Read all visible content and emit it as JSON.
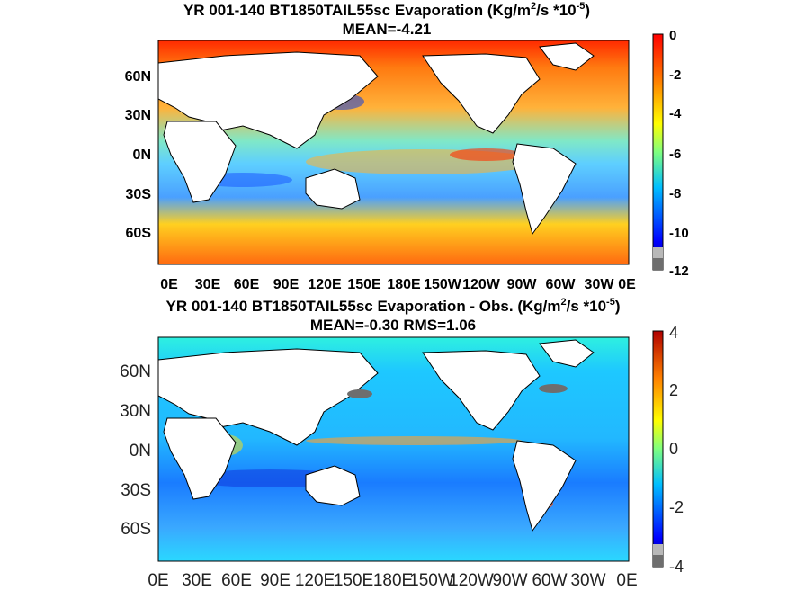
{
  "chart_data": [
    {
      "type": "heatmap",
      "title_main": "YR 001-140 BT1850TAIL55sc  Evaporation (Kg/m",
      "title_sup1": "2",
      "title_mid": "/s *10",
      "title_sup2": "-5",
      "title_end": ")",
      "subtitle": "MEAN=-4.21",
      "mean": -4.21,
      "x_ticks": [
        "0E",
        "30E",
        "60E",
        "90E",
        "120E",
        "150E",
        "180E",
        "150W",
        "120W",
        "90W",
        "60W",
        "30W",
        "0E"
      ],
      "y_ticks": [
        "60N",
        "30N",
        "0N",
        "30S",
        "60S"
      ],
      "colorbar": {
        "ticks": [
          "0",
          "-2",
          "-4",
          "-6",
          "-8",
          "-10",
          "-12"
        ],
        "range": [
          -12,
          0
        ]
      }
    },
    {
      "type": "heatmap",
      "title_main": "YR 001-140 BT1850TAIL55sc Evaporation - Obs. (Kg/m",
      "title_sup1": "2",
      "title_mid": "/s *10",
      "title_sup2": "-5",
      "title_end": ")",
      "subtitle": "MEAN=-0.30   RMS=1.06",
      "mean": -0.3,
      "rms": 1.06,
      "x_ticks": [
        "0E",
        "30E",
        "60E",
        "90E",
        "120E",
        "150E",
        "180E",
        "150W",
        "120W",
        "90W",
        "60W",
        "30W",
        "0E"
      ],
      "y_ticks": [
        "60N",
        "30N",
        "0N",
        "30S",
        "60S"
      ],
      "colorbar": {
        "ticks": [
          "4",
          "2",
          "0",
          "-2",
          "-4"
        ],
        "range": [
          -4,
          4
        ]
      }
    }
  ]
}
